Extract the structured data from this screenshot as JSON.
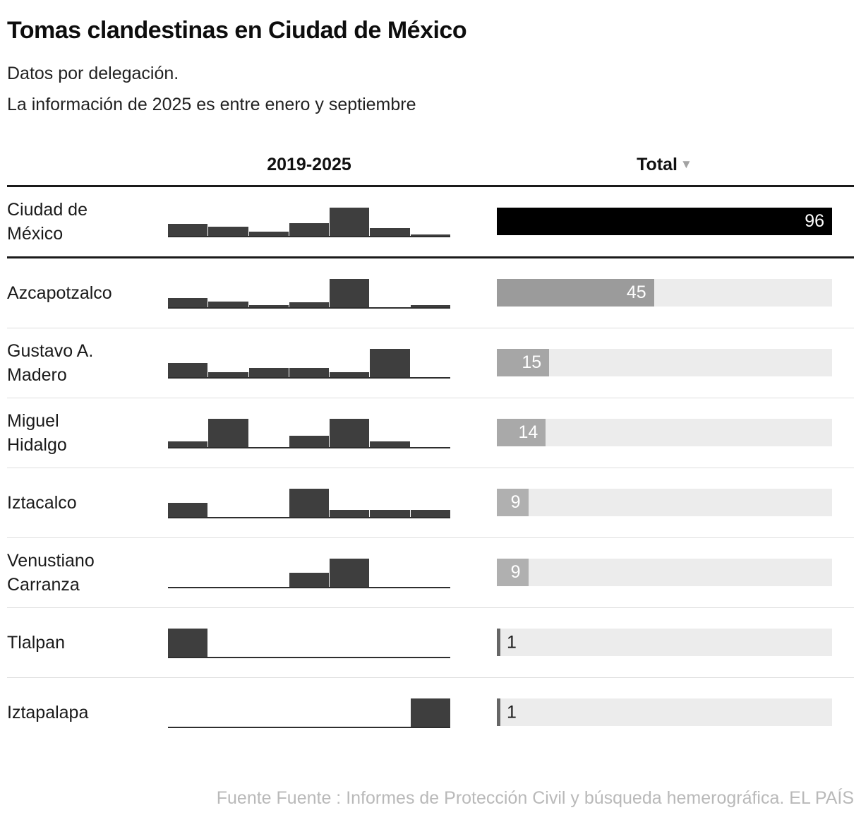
{
  "title": "Tomas clandestinas en Ciudad de México",
  "subtitle_line1": "Datos por delegación.",
  "subtitle_line2": "La información de 2025 es entre enero y septiembre",
  "columns": {
    "sparkline": "2019-2025",
    "total": "Total",
    "sort_icon": "▼"
  },
  "footer": "Fuente Fuente : Informes de Protección Civil y búsqueda hemerográfica. EL PAÍS",
  "colors": {
    "spark_bar": "#3e3e3e",
    "track": "#ececec",
    "divider_thick": "#1a1a1a",
    "divider_thin": "#dedede",
    "footer_text": "#b9b9b9",
    "value_inside_text": "#ffffff",
    "value_outside_text": "#1a1a1a"
  },
  "chart_data": {
    "type": "bar",
    "years": [
      2019,
      2020,
      2021,
      2022,
      2023,
      2024,
      2025
    ],
    "total_max": 96,
    "note": "Sparkline yearly values estimated from bar heights; totals are labeled values",
    "rows": [
      {
        "label_lines": [
          "Ciudad de",
          "México"
        ],
        "total": 96,
        "spark": [
          15,
          12,
          5,
          16,
          36,
          10,
          2
        ],
        "bar_color": "#000000",
        "divider": "thick"
      },
      {
        "label_lines": [
          "Azcapotzalco"
        ],
        "total": 45,
        "spark": [
          8,
          5,
          2,
          4,
          24,
          0,
          2
        ],
        "bar_color": "#9b9b9b",
        "divider": "thin"
      },
      {
        "label_lines": [
          "Gustavo A.",
          "Madero"
        ],
        "total": 15,
        "spark": [
          3,
          1,
          2,
          2,
          1,
          6,
          0
        ],
        "bar_color": "#a6a6a6",
        "divider": "thin"
      },
      {
        "label_lines": [
          "Miguel",
          "Hidalgo"
        ],
        "total": 14,
        "spark": [
          1,
          5,
          0,
          2,
          5,
          1,
          0
        ],
        "bar_color": "#a9a9a9",
        "divider": "thin"
      },
      {
        "label_lines": [
          "Iztacalco"
        ],
        "total": 9,
        "spark": [
          2,
          0,
          0,
          4,
          1,
          1,
          1
        ],
        "bar_color": "#b0b0b0",
        "divider": "thin"
      },
      {
        "label_lines": [
          "Venustiano",
          "Carranza"
        ],
        "total": 9,
        "spark": [
          0,
          0,
          0,
          3,
          6,
          0,
          0
        ],
        "bar_color": "#b0b0b0",
        "divider": "thin"
      },
      {
        "label_lines": [
          "Tlalpan"
        ],
        "total": 1,
        "spark": [
          1,
          0,
          0,
          0,
          0,
          0,
          0
        ],
        "bar_color": "#666666",
        "divider": "thin"
      },
      {
        "label_lines": [
          "Iztapalapa"
        ],
        "total": 1,
        "spark": [
          0,
          0,
          0,
          0,
          0,
          0,
          1
        ],
        "bar_color": "#666666",
        "divider": "none"
      }
    ]
  }
}
